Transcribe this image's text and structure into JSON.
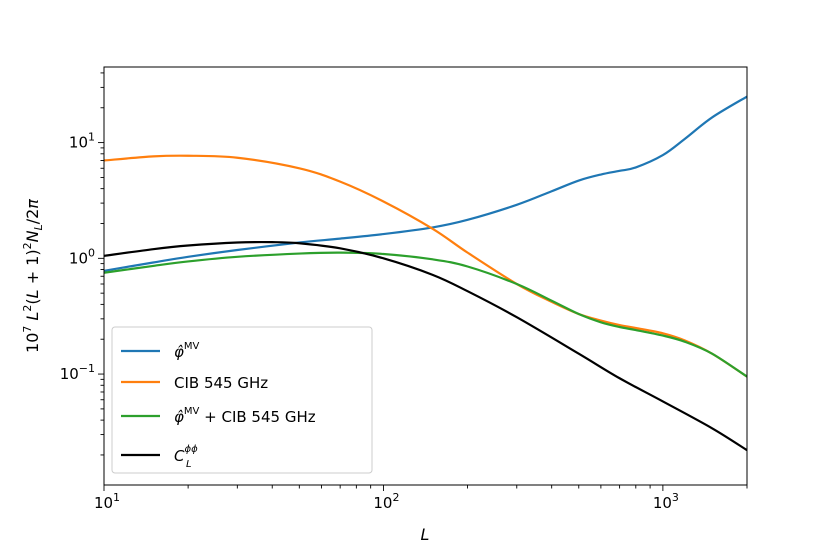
{
  "chart_data": {
    "type": "line",
    "xscale": "log",
    "yscale": "log",
    "xlim": [
      10,
      2000
    ],
    "ylim": [
      0.011,
      45
    ],
    "xlabel": "L",
    "ylabel": "10^7 L^2(L+1)^2 N_L/2π",
    "x_ticks": [
      {
        "value": 10,
        "base": "10",
        "exp": "1"
      },
      {
        "value": 100,
        "base": "10",
        "exp": "2"
      },
      {
        "value": 1000,
        "base": "10",
        "exp": "3"
      }
    ],
    "y_ticks": [
      {
        "value": 0.1,
        "base": "10",
        "exp": "−1"
      },
      {
        "value": 1,
        "base": "10",
        "exp": "0"
      },
      {
        "value": 10,
        "base": "10",
        "exp": "1"
      }
    ],
    "legend_location": "lower-left",
    "series": [
      {
        "name": "phi-mv",
        "label_main": "φ̂",
        "label_sup": "MV",
        "label_rest": "",
        "color": "#1f77b4",
        "x": [
          10,
          15,
          20,
          30,
          50,
          70,
          100,
          150,
          200,
          300,
          400,
          500,
          600,
          700,
          800,
          1000,
          1200,
          1500,
          2000
        ],
        "y": [
          0.78,
          0.92,
          1.03,
          1.18,
          1.37,
          1.48,
          1.62,
          1.85,
          2.15,
          2.9,
          3.8,
          4.7,
          5.3,
          5.7,
          6.1,
          7.8,
          10.8,
          16.5,
          25
        ]
      },
      {
        "name": "cib-545",
        "label_main": "CIB  545 GHz",
        "label_sup": "",
        "label_rest": "",
        "color": "#ff7f0e",
        "x": [
          10,
          15,
          20,
          30,
          50,
          70,
          100,
          150,
          200,
          300,
          400,
          500,
          600,
          700,
          800,
          1000,
          1200,
          1500,
          2000
        ],
        "y": [
          7.0,
          7.6,
          7.7,
          7.4,
          6.0,
          4.6,
          3.1,
          1.8,
          1.12,
          0.6,
          0.42,
          0.33,
          0.29,
          0.265,
          0.25,
          0.225,
          0.195,
          0.15,
          0.095
        ]
      },
      {
        "name": "phi-mv-plus-cib",
        "label_main": "φ̂",
        "label_sup": "MV",
        "label_rest": " + CIB  545 GHz",
        "color": "#2ca02c",
        "x": [
          10,
          15,
          20,
          30,
          50,
          70,
          100,
          150,
          200,
          300,
          400,
          500,
          600,
          700,
          800,
          1000,
          1200,
          1500,
          2000
        ],
        "y": [
          0.75,
          0.86,
          0.94,
          1.03,
          1.1,
          1.12,
          1.09,
          0.98,
          0.85,
          0.6,
          0.43,
          0.33,
          0.28,
          0.255,
          0.24,
          0.215,
          0.19,
          0.15,
          0.095
        ]
      },
      {
        "name": "c-l-phiphi",
        "label_main": "C",
        "label_sup": "ϕϕ",
        "label_sub": "L",
        "label_rest": "",
        "color": "#000000",
        "x": [
          10,
          15,
          20,
          30,
          40,
          50,
          70,
          100,
          150,
          200,
          300,
          500,
          700,
          1000,
          1500,
          2000
        ],
        "y": [
          1.05,
          1.2,
          1.29,
          1.37,
          1.38,
          1.35,
          1.22,
          1.0,
          0.72,
          0.52,
          0.31,
          0.15,
          0.092,
          0.058,
          0.034,
          0.022
        ]
      }
    ]
  }
}
